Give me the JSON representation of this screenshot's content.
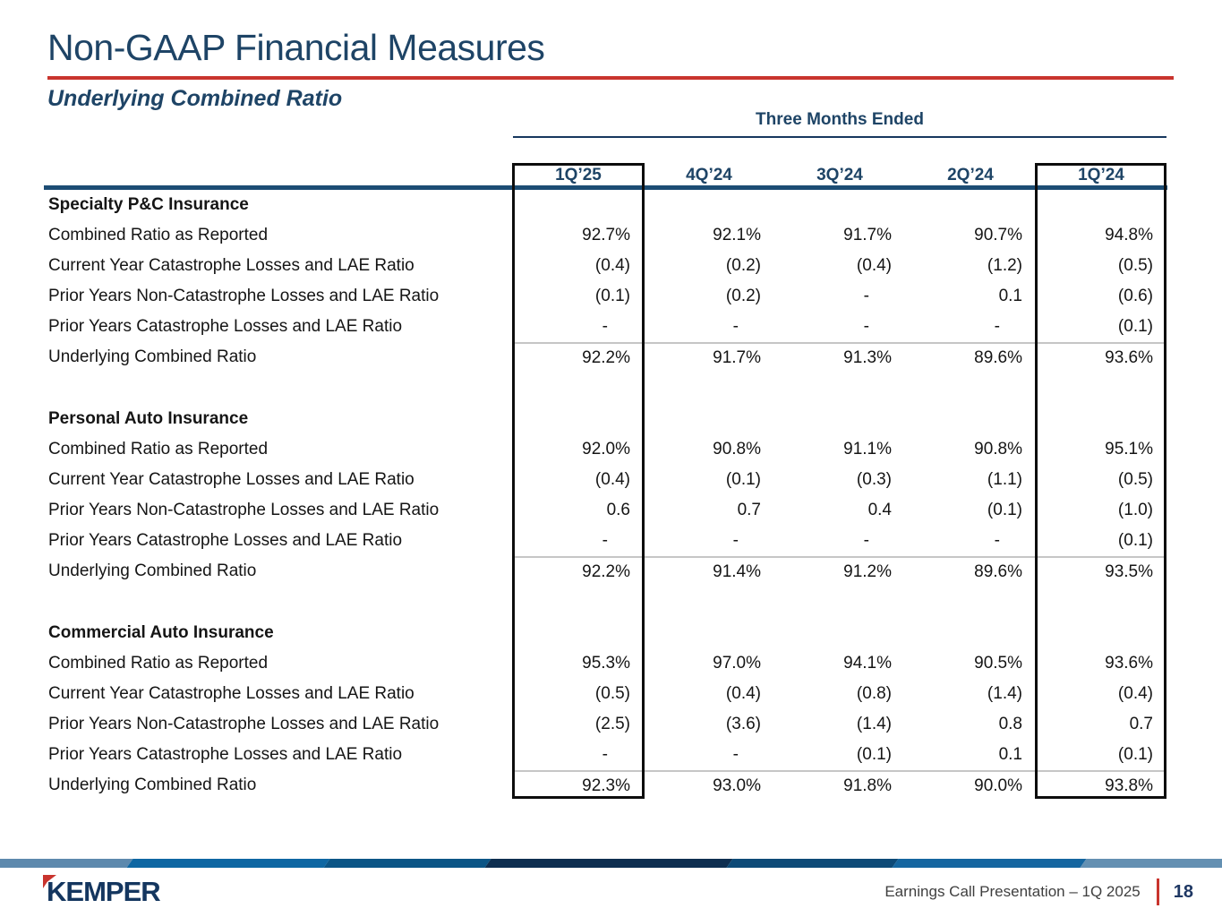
{
  "slide": {
    "title": "Non-GAAP Financial Measures",
    "subtitle": "Underlying Combined Ratio"
  },
  "table": {
    "group_header": "Three Months Ended",
    "columns": [
      "1Q’25",
      "4Q’24",
      "3Q’24",
      "2Q’24",
      "1Q’24"
    ],
    "highlighted_columns": [
      "1Q’25",
      "1Q’24"
    ],
    "row_labels": [
      "Combined Ratio as Reported",
      "Current Year Catastrophe Losses and LAE Ratio",
      "Prior Years Non-Catastrophe Losses and LAE Ratio",
      "Prior Years Catastrophe Losses and LAE Ratio",
      "Underlying Combined Ratio"
    ],
    "sections": [
      {
        "name": "Specialty P&C Insurance",
        "rows": [
          [
            "92.7%",
            "92.1%",
            "91.7%",
            "90.7%",
            "94.8%"
          ],
          [
            "(0.4)",
            "(0.2)",
            "(0.4)",
            "(1.2)",
            "(0.5)"
          ],
          [
            "(0.1)",
            "(0.2)",
            "-",
            "0.1",
            "(0.6)"
          ],
          [
            "-",
            "-",
            "-",
            "-",
            "(0.1)"
          ],
          [
            "92.2%",
            "91.7%",
            "91.3%",
            "89.6%",
            "93.6%"
          ]
        ]
      },
      {
        "name": "Personal Auto Insurance",
        "rows": [
          [
            "92.0%",
            "90.8%",
            "91.1%",
            "90.8%",
            "95.1%"
          ],
          [
            "(0.4)",
            "(0.1)",
            "(0.3)",
            "(1.1)",
            "(0.5)"
          ],
          [
            "0.6",
            "0.7",
            "0.4",
            "(0.1)",
            "(1.0)"
          ],
          [
            "-",
            "-",
            "-",
            "-",
            "(0.1)"
          ],
          [
            "92.2%",
            "91.4%",
            "91.2%",
            "89.6%",
            "93.5%"
          ]
        ]
      },
      {
        "name": "Commercial Auto Insurance",
        "rows": [
          [
            "95.3%",
            "97.0%",
            "94.1%",
            "90.5%",
            "93.6%"
          ],
          [
            "(0.5)",
            "(0.4)",
            "(0.8)",
            "(1.4)",
            "(0.4)"
          ],
          [
            "(2.5)",
            "(3.6)",
            "(1.4)",
            "0.8",
            "0.7"
          ],
          [
            "-",
            "-",
            "(0.1)",
            "0.1",
            "(0.1)"
          ],
          [
            "92.3%",
            "93.0%",
            "91.8%",
            "90.0%",
            "93.8%"
          ]
        ]
      }
    ]
  },
  "footer": {
    "logo_text": "KEMPER",
    "caption": "Earnings Call Presentation – 1Q 2025",
    "page_number": "18",
    "bar_colors": [
      "#5d89ad",
      "#0e67a3",
      "#0b5586",
      "#0e2e50",
      "#0d4a77",
      "#1566a0",
      "#6490b2"
    ]
  },
  "colors": {
    "accent_red": "#c9342e",
    "heading_navy": "#1e4466",
    "rule_navy": "#1c4d74",
    "logo_navy": "#14365f"
  }
}
